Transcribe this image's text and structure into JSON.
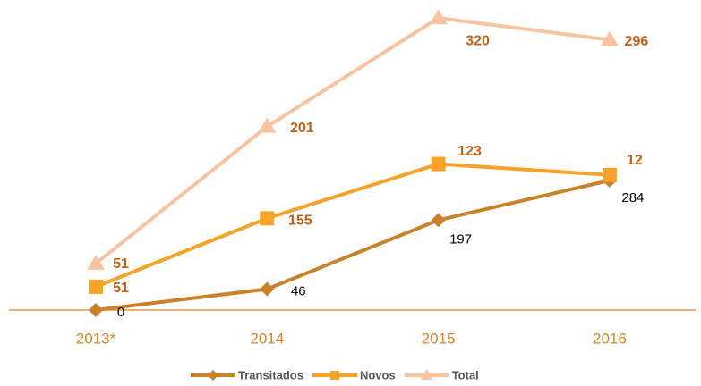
{
  "chart_data": {
    "type": "line",
    "stacked": true,
    "categories": [
      "2013*",
      "2014",
      "2015",
      "2016"
    ],
    "series": [
      {
        "name": "Transitados",
        "color": "#c8822a",
        "marker": "diamond",
        "values": [
          0,
          46,
          197,
          284
        ]
      },
      {
        "name": "Novos",
        "color": "#f7a229",
        "marker": "square",
        "values": [
          51,
          155,
          123,
          12
        ]
      },
      {
        "name": "Total",
        "color": "#f8c4a0",
        "marker": "triangle",
        "values": [
          51,
          201,
          320,
          296
        ]
      }
    ],
    "ylim": [
      0,
      650
    ],
    "legend": "bottom"
  }
}
